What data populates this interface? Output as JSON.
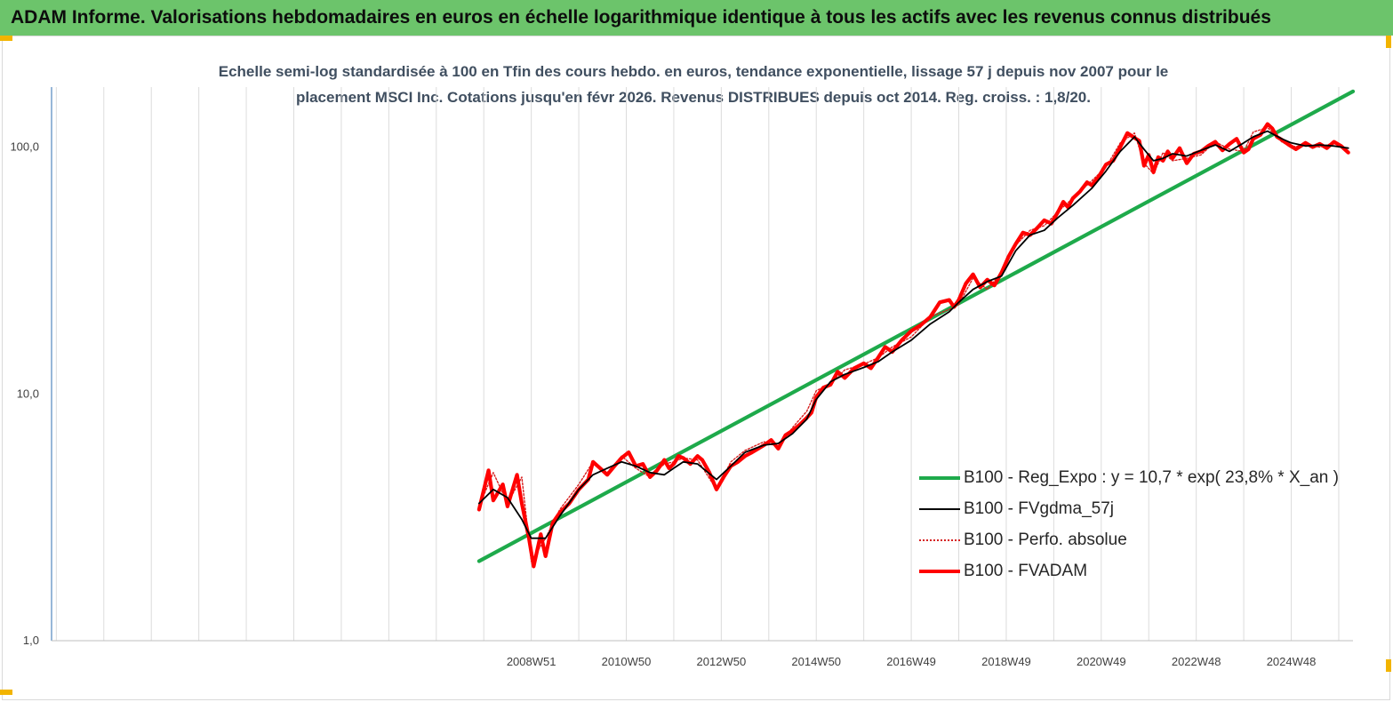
{
  "banner": {
    "text": "ADAM Informe. Valorisations hebdomadaires en euros en échelle logarithmique identique à tous les actifs avec les revenus connus distribués"
  },
  "chart_data": {
    "type": "line",
    "title_line1": "Echelle semi-log standardisée à 100 en Tfin des cours hebdo. en euros, tendance exponentielle, lissage 57 j depuis nov 2007 pour le",
    "title_line2": "placement MSCI Inc. Cotations jusqu'en févr 2026. Revenus DISTRIBUES depuis oct 2014.  Reg. croiss. : 1,8/20.",
    "y_scale": "log",
    "ylim": [
      1,
      175
    ],
    "y_ticks": [
      "1,0",
      "10,0",
      "100,0"
    ],
    "y_tick_values": [
      1,
      10,
      100
    ],
    "x_tick_labels": [
      "2008W51",
      "2010W50",
      "2012W50",
      "2014W50",
      "2016W49",
      "2018W49",
      "2020W49",
      "2022W48",
      "2024W48"
    ],
    "xlim": [
      1998.9,
      2026.3
    ],
    "x_tick_years": [
      2009,
      2011,
      2013,
      2015,
      2017,
      2019,
      2021,
      2023,
      2025
    ],
    "grid": "vertical",
    "legend_position": "bottom-right",
    "series": [
      {
        "name": "B100 - Reg_Expo : y = 10,7 * exp( 23,8% *  X_an )",
        "color": "#1eaa4b",
        "style": "solid-thick",
        "x": [
          2007.9,
          2026.3
        ],
        "y": [
          2.1,
          168
        ]
      },
      {
        "name": "B100 - FVgdma_57j",
        "color": "#000000",
        "style": "solid-thin",
        "x": [
          2007.9,
          2008.2,
          2008.5,
          2008.8,
          2009.0,
          2009.3,
          2009.6,
          2010.0,
          2010.3,
          2010.6,
          2010.9,
          2011.2,
          2011.5,
          2011.8,
          2012.0,
          2012.2,
          2012.5,
          2012.9,
          2013.2,
          2013.5,
          2013.9,
          2014.2,
          2014.5,
          2014.8,
          2015.0,
          2015.3,
          2015.6,
          2016.0,
          2016.3,
          2016.6,
          2017.0,
          2017.4,
          2017.8,
          2018.0,
          2018.3,
          2018.6,
          2018.9,
          2019.2,
          2019.5,
          2019.8,
          2020.1,
          2020.4,
          2020.8,
          2021.1,
          2021.4,
          2021.7,
          2021.9,
          2022.1,
          2022.3,
          2022.5,
          2022.8,
          2023.1,
          2023.4,
          2023.7,
          2024.0,
          2024.2,
          2024.5,
          2024.8,
          2025.0,
          2025.3,
          2025.6,
          2025.9,
          2026.2
        ],
        "y": [
          3.6,
          4.1,
          3.8,
          3.1,
          2.6,
          2.6,
          3.2,
          4.1,
          4.7,
          5.0,
          5.3,
          5.1,
          4.8,
          4.7,
          5.0,
          5.3,
          5.2,
          4.5,
          5.1,
          5.8,
          6.2,
          6.3,
          6.9,
          7.9,
          9.5,
          11.2,
          12.0,
          12.8,
          13.5,
          14.8,
          16.5,
          19.2,
          21.5,
          23.5,
          26.5,
          28.5,
          30.0,
          38.0,
          44.0,
          46.0,
          52.0,
          58.0,
          68.0,
          80.0,
          96.0,
          110.0,
          98.0,
          88.0,
          90.0,
          94.0,
          92.0,
          97.0,
          102.0,
          96.0,
          104.0,
          110.0,
          116.0,
          108.0,
          104.0,
          101.0,
          102.0,
          101.0,
          99.0
        ]
      },
      {
        "name": "B100 - Perfo. absolue",
        "color": "#d62020",
        "style": "dotted",
        "x": [
          2007.9,
          2008.2,
          2008.5,
          2008.8,
          2009.0,
          2009.3,
          2009.6,
          2010.0,
          2010.3,
          2010.6,
          2010.9,
          2011.2,
          2011.5,
          2011.8,
          2012.0,
          2012.2,
          2012.5,
          2012.9,
          2013.2,
          2013.5,
          2013.9,
          2014.2,
          2014.5,
          2014.8,
          2015.0,
          2015.3,
          2015.6,
          2016.0,
          2016.3,
          2016.6,
          2017.0,
          2017.4,
          2017.8,
          2018.0,
          2018.3,
          2018.6,
          2018.9,
          2019.2,
          2019.5,
          2019.8,
          2020.1,
          2020.4,
          2020.8,
          2021.1,
          2021.4,
          2021.7,
          2021.9,
          2022.1,
          2022.3,
          2022.5,
          2022.8,
          2023.1,
          2023.4,
          2023.7,
          2024.0,
          2024.2,
          2024.5,
          2024.8,
          2025.0,
          2025.3,
          2025.6,
          2025.9,
          2026.2
        ],
        "y": [
          3.5,
          4.8,
          3.6,
          4.6,
          2.1,
          2.6,
          3.4,
          4.3,
          5.3,
          4.8,
          5.6,
          5.0,
          4.6,
          5.2,
          5.3,
          5.5,
          5.4,
          4.1,
          5.3,
          5.9,
          6.4,
          6.1,
          7.3,
          8.5,
          10.3,
          11.0,
          12.5,
          13.2,
          14.0,
          15.5,
          17.0,
          20.5,
          22.0,
          23.0,
          29.5,
          26.5,
          31.0,
          40.0,
          46.0,
          48.0,
          55.0,
          62.0,
          73.0,
          83.0,
          104.0,
          114.0,
          86.0,
          78.0,
          95.0,
          88.0,
          90.0,
          93.0,
          105.0,
          98.0,
          96.0,
          115.0,
          120.0,
          105.0,
          100.0,
          102.0,
          100.0,
          104.0,
          96.0
        ]
      },
      {
        "name": "B100 - FVADAM",
        "color": "#ff0000",
        "style": "solid-thick",
        "x": [
          2007.9,
          2008.1,
          2008.2,
          2008.4,
          2008.5,
          2008.7,
          2008.8,
          2008.95,
          2009.05,
          2009.2,
          2009.3,
          2009.45,
          2009.6,
          2009.8,
          2010.0,
          2010.2,
          2010.3,
          2010.45,
          2010.6,
          2010.75,
          2010.9,
          2011.05,
          2011.2,
          2011.35,
          2011.5,
          2011.65,
          2011.8,
          2011.9,
          2012.0,
          2012.1,
          2012.2,
          2012.35,
          2012.5,
          2012.6,
          2012.75,
          2012.9,
          2013.05,
          2013.2,
          2013.35,
          2013.5,
          2013.65,
          2013.9,
          2014.05,
          2014.2,
          2014.35,
          2014.5,
          2014.65,
          2014.8,
          2014.9,
          2015.0,
          2015.15,
          2015.3,
          2015.45,
          2015.6,
          2015.8,
          2016.0,
          2016.15,
          2016.3,
          2016.45,
          2016.6,
          2016.8,
          2017.0,
          2017.2,
          2017.4,
          2017.6,
          2017.8,
          2017.9,
          2018.0,
          2018.15,
          2018.3,
          2018.45,
          2018.6,
          2018.75,
          2018.9,
          2019.05,
          2019.2,
          2019.35,
          2019.5,
          2019.65,
          2019.8,
          2019.95,
          2020.1,
          2020.2,
          2020.3,
          2020.4,
          2020.55,
          2020.7,
          2020.8,
          2020.95,
          2021.1,
          2021.25,
          2021.4,
          2021.55,
          2021.7,
          2021.8,
          2021.9,
          2022.0,
          2022.1,
          2022.2,
          2022.3,
          2022.4,
          2022.5,
          2022.65,
          2022.8,
          2022.95,
          2023.1,
          2023.25,
          2023.4,
          2023.55,
          2023.7,
          2023.85,
          2024.0,
          2024.1,
          2024.2,
          2024.35,
          2024.5,
          2024.6,
          2024.7,
          2024.8,
          2024.95,
          2025.1,
          2025.3,
          2025.45,
          2025.6,
          2025.75,
          2025.9,
          2026.05,
          2026.2
        ],
        "y": [
          3.4,
          4.9,
          3.7,
          4.3,
          3.5,
          4.7,
          3.6,
          2.6,
          2.0,
          2.7,
          2.2,
          3.0,
          3.3,
          3.6,
          4.1,
          4.5,
          5.3,
          5.0,
          4.7,
          5.1,
          5.5,
          5.8,
          5.1,
          5.2,
          4.6,
          4.9,
          5.4,
          5.0,
          5.2,
          5.6,
          5.5,
          5.2,
          5.6,
          5.4,
          4.8,
          4.1,
          4.6,
          5.1,
          5.3,
          5.6,
          5.8,
          6.2,
          6.5,
          6.0,
          6.8,
          7.1,
          7.5,
          8.0,
          8.4,
          9.7,
          10.6,
          10.9,
          12.3,
          11.6,
          12.7,
          13.3,
          12.7,
          14.0,
          15.5,
          14.8,
          16.5,
          18.0,
          19.0,
          20.5,
          23.5,
          24.0,
          22.5,
          24.0,
          28.0,
          30.5,
          27.0,
          29.0,
          27.5,
          31.0,
          36.0,
          40.5,
          45.0,
          44.0,
          47.0,
          50.5,
          49.0,
          55.0,
          60.0,
          57.0,
          62.0,
          66.0,
          72.0,
          70.0,
          76.0,
          85.0,
          88.0,
          100.0,
          114.0,
          109.0,
          106.0,
          84.0,
          93.0,
          79.0,
          91.0,
          88.0,
          96.0,
          90.0,
          99.0,
          86.0,
          94.0,
          96.0,
          101.0,
          105.0,
          97.0,
          103.0,
          108.0,
          95.0,
          98.0,
          108.0,
          112.0,
          124.0,
          119.0,
          110.0,
          107.0,
          102.0,
          98.0,
          104.0,
          100.0,
          103.0,
          99.0,
          105.0,
          101.0,
          95.0
        ]
      }
    ]
  }
}
